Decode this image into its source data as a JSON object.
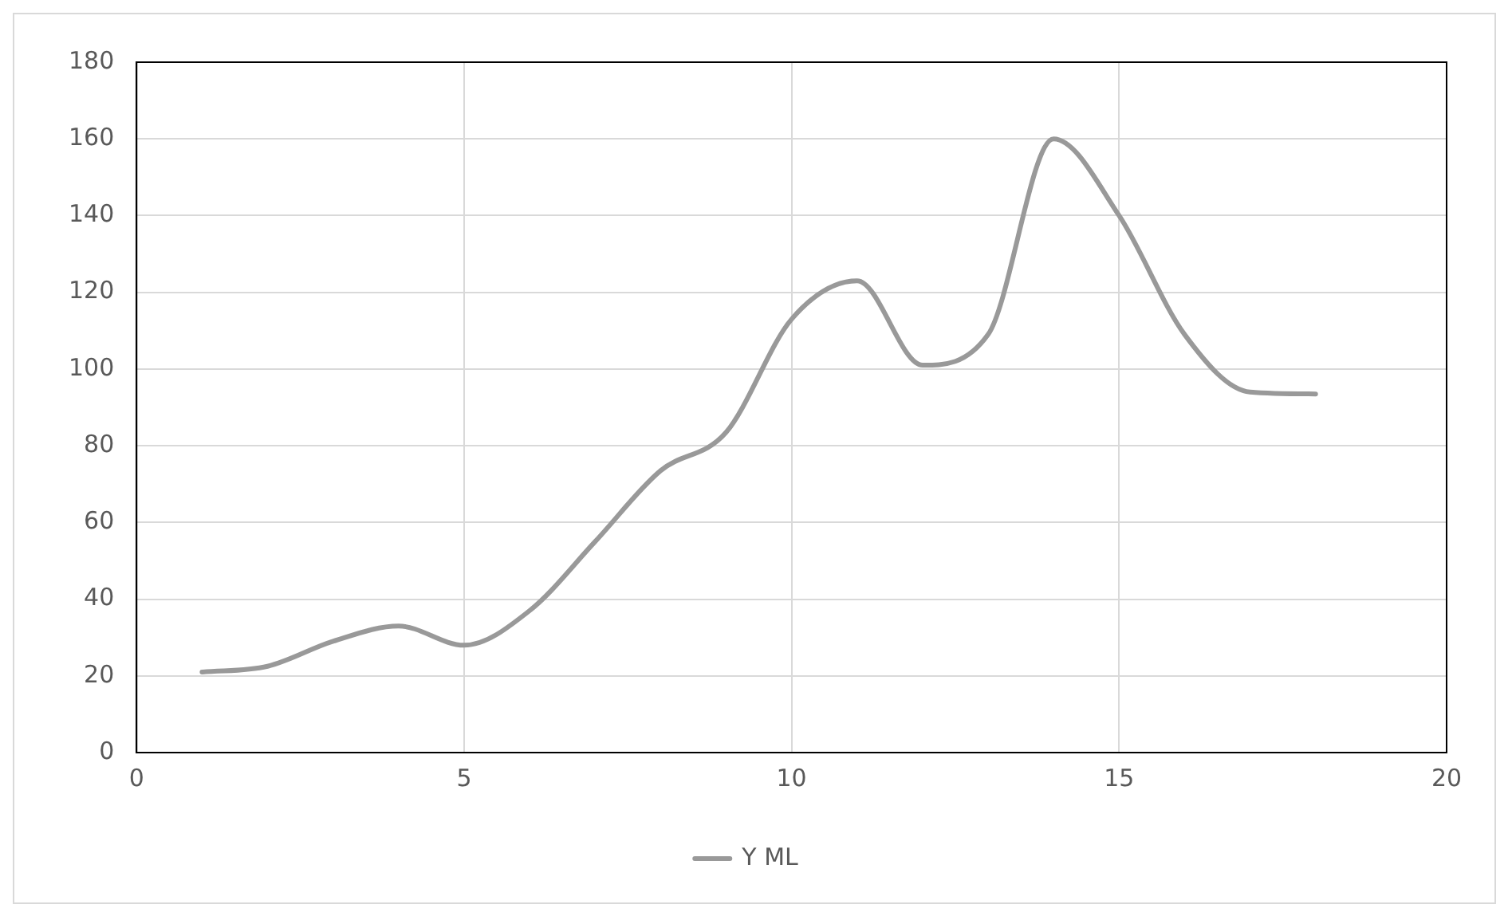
{
  "chart_data": {
    "type": "line",
    "x": [
      1,
      2,
      3,
      4,
      5,
      6,
      7,
      8,
      9,
      10,
      11,
      12,
      13,
      14,
      15,
      16,
      17,
      18
    ],
    "series": [
      {
        "name": "Y ML",
        "color": "#999999",
        "values": [
          21,
          22.5,
          29,
          33,
          28,
          37,
          55,
          73.5,
          83.5,
          113,
          123,
          101,
          109,
          160,
          140,
          109,
          94,
          93.5
        ]
      }
    ],
    "xlim": [
      0,
      20
    ],
    "xticks": [
      0,
      5,
      10,
      15,
      20
    ],
    "ylim": [
      0,
      180
    ],
    "yticks": [
      0,
      20,
      40,
      60,
      80,
      100,
      120,
      140,
      160,
      180
    ],
    "grid": true,
    "legend": "bottom",
    "marker": "none",
    "line_style": "solid"
  }
}
